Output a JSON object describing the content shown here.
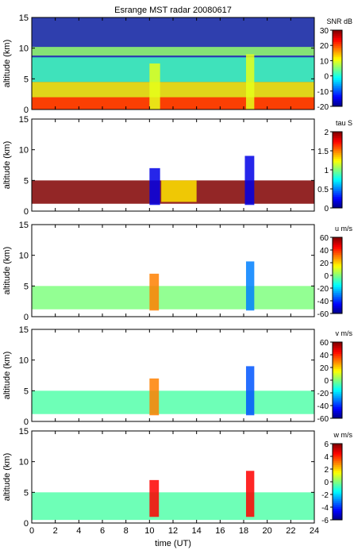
{
  "chart_data": {
    "type": "heatmap",
    "title": "Esrange MST radar 20080617",
    "xlabel": "time (UT)",
    "xlim": [
      0,
      24
    ],
    "x_ticks": [
      0,
      2,
      4,
      6,
      8,
      10,
      12,
      14,
      16,
      18,
      20,
      22,
      24
    ],
    "panels": [
      {
        "name": "snr",
        "ylabel": "altitude (km)",
        "ylim": [
          0,
          15
        ],
        "y_ticks": [
          0,
          5,
          10,
          15
        ],
        "colorbar_label": "SNR dB",
        "clim": [
          -20,
          30
        ],
        "colorbar_ticks": [
          30,
          20,
          10,
          0,
          -10,
          -20
        ],
        "background_color": "#2f3fae",
        "regions": [
          {
            "t0": 0,
            "t1": 24,
            "z0": 0,
            "z1": 4.5,
            "value": 12
          },
          {
            "t0": 0,
            "t1": 24,
            "z0": 0,
            "z1": 2,
            "value": 22
          },
          {
            "t0": 0,
            "t1": 24,
            "z0": 4.5,
            "z1": 8.5,
            "value": 2
          },
          {
            "t0": 0,
            "t1": 24,
            "z0": 8.8,
            "z1": 10.2,
            "value": 6
          },
          {
            "t0": 10,
            "t1": 10.9,
            "z0": 0,
            "z1": 7.5,
            "value": 10
          },
          {
            "t0": 18.2,
            "t1": 18.9,
            "z0": 0,
            "z1": 9,
            "value": 10
          }
        ]
      },
      {
        "name": "tau",
        "ylabel": "altitude (km)",
        "ylim": [
          0,
          15
        ],
        "y_ticks": [
          0,
          5,
          10,
          15
        ],
        "colorbar_label": "tau S",
        "clim": [
          0,
          2
        ],
        "colorbar_ticks": [
          2,
          1.5,
          1,
          0.5,
          0
        ],
        "background_color": "#ffffff",
        "regions": [
          {
            "t0": 0,
            "t1": 24,
            "z0": 1.2,
            "z1": 5,
            "value": 2
          },
          {
            "t0": 10,
            "t1": 10.9,
            "z0": 1,
            "z1": 7,
            "value": 0.2
          },
          {
            "t0": 18.1,
            "t1": 18.9,
            "z0": 1,
            "z1": 9,
            "value": 0.2
          },
          {
            "t0": 11,
            "t1": 14,
            "z0": 1.5,
            "z1": 5,
            "value": 1.3
          }
        ]
      },
      {
        "name": "u",
        "ylabel": "altitude (km)",
        "ylim": [
          0,
          15
        ],
        "y_ticks": [
          0,
          5,
          10,
          15
        ],
        "colorbar_label": "u m/s",
        "clim": [
          -60,
          60
        ],
        "colorbar_ticks": [
          60,
          40,
          20,
          0,
          -20,
          -40,
          -60
        ],
        "background_color": "#ffffff",
        "regions": [
          {
            "t0": 0,
            "t1": 24,
            "z0": 1.2,
            "z1": 5,
            "value": 0
          },
          {
            "t0": 10,
            "t1": 10.8,
            "z0": 1,
            "z1": 7,
            "value": 30
          },
          {
            "t0": 18.2,
            "t1": 18.9,
            "z0": 1,
            "z1": 9,
            "value": -30
          }
        ]
      },
      {
        "name": "v",
        "ylabel": "altitude (km)",
        "ylim": [
          0,
          15
        ],
        "y_ticks": [
          0,
          5,
          10,
          15
        ],
        "colorbar_label": "v m/s",
        "clim": [
          -60,
          60
        ],
        "colorbar_ticks": [
          60,
          40,
          20,
          0,
          -20,
          -40,
          -60
        ],
        "background_color": "#ffffff",
        "regions": [
          {
            "t0": 0,
            "t1": 24,
            "z0": 1.2,
            "z1": 5,
            "value": -5
          },
          {
            "t0": 10,
            "t1": 10.8,
            "z0": 1,
            "z1": 7,
            "value": 30
          },
          {
            "t0": 18.2,
            "t1": 18.9,
            "z0": 1,
            "z1": 9,
            "value": -35
          }
        ]
      },
      {
        "name": "w",
        "ylabel": "altitude (km)",
        "ylim": [
          0,
          15
        ],
        "y_ticks": [
          0,
          5,
          10,
          15
        ],
        "colorbar_label": "w m/s",
        "clim": [
          -6,
          6
        ],
        "colorbar_ticks": [
          6,
          4,
          2,
          0,
          -2,
          -4,
          -6
        ],
        "background_color": "#ffffff",
        "regions": [
          {
            "t0": 0,
            "t1": 24,
            "z0": 0.5,
            "z1": 5,
            "value": -0.5
          },
          {
            "t0": 10,
            "t1": 10.8,
            "z0": 1,
            "z1": 7,
            "value": 4.5
          },
          {
            "t0": 18.2,
            "t1": 18.9,
            "z0": 1,
            "z1": 8.5,
            "value": 4.5
          }
        ]
      }
    ]
  }
}
